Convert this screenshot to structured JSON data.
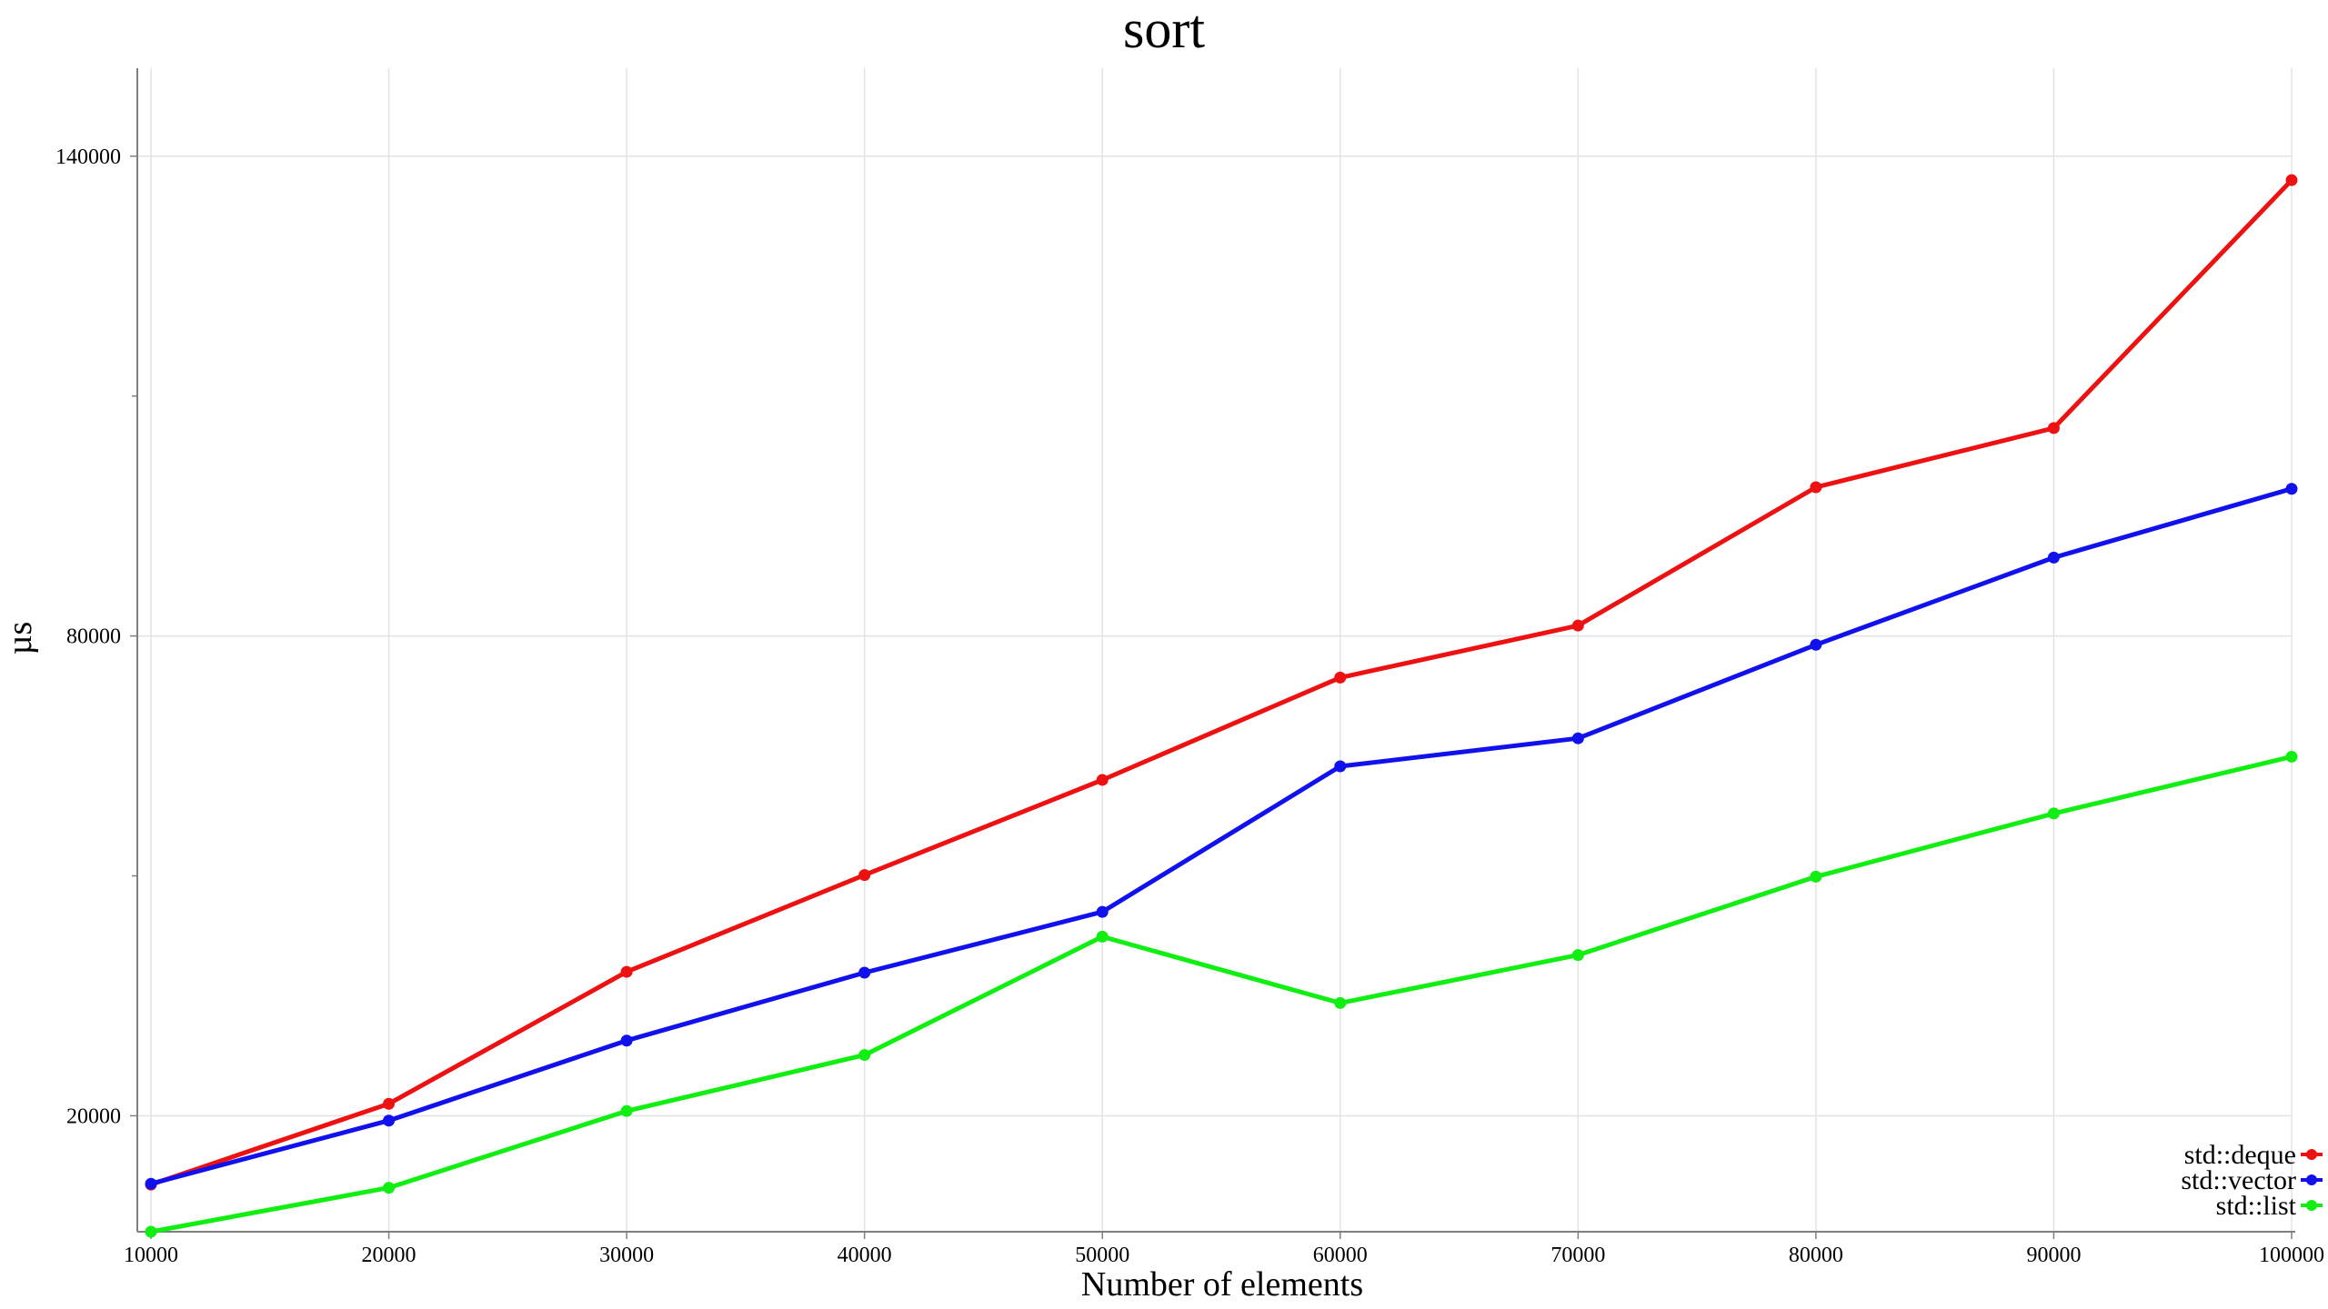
{
  "chart_data": {
    "type": "line",
    "title": "sort",
    "xlabel": "Number of elements",
    "ylabel": "µs",
    "x": [
      10000,
      20000,
      30000,
      40000,
      50000,
      60000,
      70000,
      80000,
      90000,
      100000
    ],
    "xlim": [
      10000,
      100000
    ],
    "ylim": [
      5500,
      151000
    ],
    "xticks": [
      10000,
      20000,
      30000,
      40000,
      50000,
      60000,
      70000,
      80000,
      90000,
      100000
    ],
    "xtick_labels": [
      "10000",
      "20000",
      "30000",
      "40000",
      "50000",
      "60000",
      "70000",
      "80000",
      "90000",
      "100000"
    ],
    "yticks_labeled": [
      20000,
      80000,
      140000
    ],
    "ytick_labels": [
      "20000",
      "80000",
      "140000"
    ],
    "yticks_minor": [
      50000,
      110000
    ],
    "grid": true,
    "legend_position": "bottom-right",
    "series": [
      {
        "name": "std::deque",
        "color": "#ee1111",
        "values": [
          11400,
          21500,
          38000,
          50100,
          62000,
          74800,
          81300,
          98600,
          106000,
          137000
        ]
      },
      {
        "name": "std::vector",
        "color": "#1111ee",
        "values": [
          11500,
          19400,
          29400,
          37900,
          45500,
          63700,
          67200,
          78900,
          89800,
          98400
        ]
      },
      {
        "name": "std::list",
        "color": "#11ee11",
        "values": [
          5500,
          11000,
          20600,
          27600,
          42400,
          34100,
          40100,
          49900,
          57800,
          64900
        ]
      }
    ]
  }
}
